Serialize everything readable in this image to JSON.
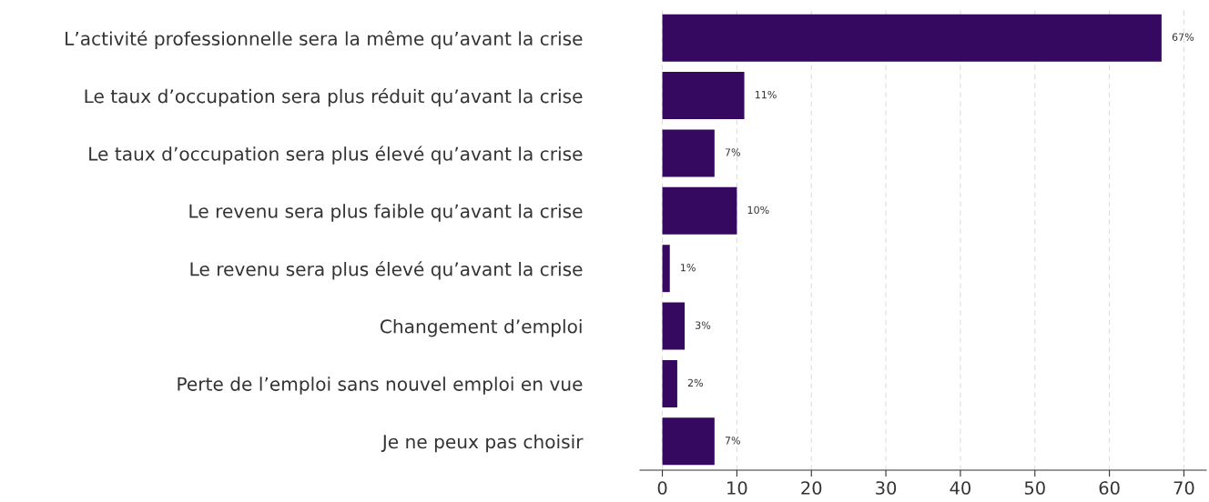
{
  "chart_data": {
    "type": "bar",
    "orientation": "horizontal",
    "categories": [
      "L’activité professionnelle sera la même qu’avant la crise",
      "Le taux d’occupation sera plus réduit qu’avant la crise",
      "Le taux d’occupation sera plus élevé qu’avant la crise",
      "Le revenu sera plus faible qu’avant la crise",
      "Le revenu sera plus élevé qu’avant la crise",
      "Changement d’emploi",
      "Perte de l’emploi sans nouvel emploi en vue",
      "Je ne peux pas choisir"
    ],
    "values": [
      67,
      11,
      7,
      10,
      1,
      3,
      2,
      7
    ],
    "value_labels": [
      "67%",
      "11%",
      "7%",
      "10%",
      "1%",
      "3%",
      "2%",
      "7%"
    ],
    "color": "#35095f",
    "xlim": [
      -3,
      73
    ],
    "xticks": [
      0,
      10,
      20,
      30,
      40,
      50,
      60,
      70
    ],
    "grid": "x",
    "legend": false
  }
}
